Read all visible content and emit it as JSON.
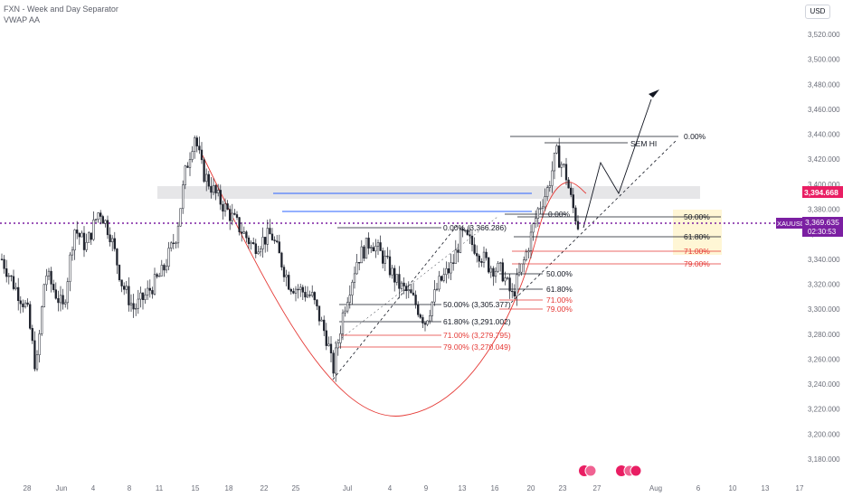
{
  "legend": {
    "line1": "FXN - Week and Day Separator",
    "line2": "VWAP AA"
  },
  "currency": "USD",
  "chart_data": {
    "type": "candlestick",
    "symbol": "XAUUSD",
    "ylim": [
      3170,
      3540
    ],
    "yticks": [
      "3,520.000",
      "3,500.000",
      "3,480.000",
      "3,460.000",
      "3,440.000",
      "3,420.000",
      "3,400.000",
      "3,380.000",
      "3,360.000",
      "3,340.000",
      "3,320.000",
      "3,300.000",
      "3,280.000",
      "3,260.000",
      "3,240.000",
      "3,220.000",
      "3,200.000",
      "3,180.000"
    ],
    "ytick_values": [
      3520,
      3500,
      3480,
      3460,
      3440,
      3420,
      3400,
      3380,
      3360,
      3340,
      3320,
      3300,
      3280,
      3260,
      3240,
      3220,
      3200,
      3180
    ],
    "xticks": [
      "28",
      "Jun",
      "4",
      "8",
      "11",
      "15",
      "18",
      "22",
      "25",
      "Jul",
      "4",
      "9",
      "13",
      "16",
      "20",
      "23",
      "27",
      "Aug",
      "6",
      "10",
      "13",
      "17"
    ],
    "price_tags": {
      "red_value": "3,394.668",
      "symbol_label": "XAUUSD",
      "current_value": "3,369.635",
      "countdown": "02:30:53"
    },
    "annotations": {
      "sem_hi": "SEM HI",
      "fib_top": [
        "0.00%",
        "50.00%",
        "61.80%",
        "71.00%",
        "79.00%"
      ],
      "fib_mid": [
        "0.00%",
        "50.00%",
        "61.80%",
        "71.00%",
        "79.00%"
      ],
      "fib_low": [
        "0.00% (3,366.286)",
        "50.00% (3,305.377)",
        "61.80% (3,291.002)",
        "71.00% (3,279.795)",
        "79.00% (3,270.049)"
      ],
      "fib_small_zero": "0.00%"
    },
    "colors": {
      "up": "#089981",
      "candle": "#1e222d",
      "red": "#e53935",
      "blue": "#2962ff",
      "purple": "#7b1fa2",
      "tag_red": "#e91e63"
    }
  }
}
